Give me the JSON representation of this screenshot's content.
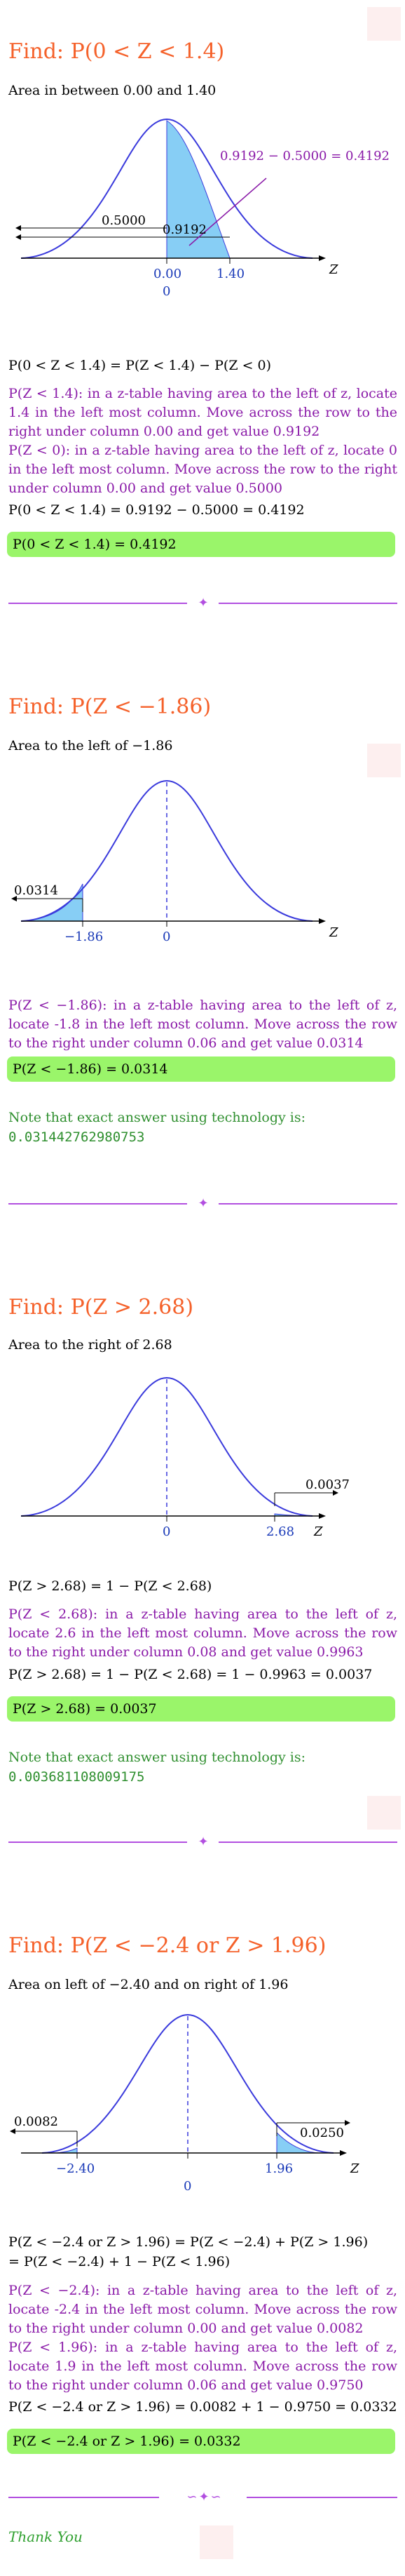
{
  "sections": [
    {
      "title": "Find: P(0 < Z < 1.4)",
      "subtitle": "Area in between 0.00 and 1.40",
      "graph": {
        "labels": [
          "0.9192 − 0.5000 = 0.4192",
          "0.5000",
          "0.9192",
          "0.00",
          "1.40",
          "0",
          "Z"
        ]
      },
      "lines": [
        "P(0 < Z < 1.4) = P(Z < 1.4) − P(Z < 0)"
      ],
      "para1": "P(Z < 1.4): in a z-table having area to the left of z, locate 1.4 in the left most column. Move across the row to the right under column 0.00 and get value 0.9192",
      "para2": "P(Z < 0): in a z-table having area to the left of z, locate 0 in the left most column. Move across the row to the right under column 0.00 and get value 0.5000",
      "line2": "P(0 < Z < 1.4) = 0.9192 − 0.5000 = 0.4192",
      "result": "P(0 < Z < 1.4) = 0.4192"
    },
    {
      "title": "Find: P(Z < −1.86)",
      "subtitle": "Area to the left of −1.86",
      "graph": {
        "labels": [
          "0.0314",
          "−1.86",
          "0",
          "Z"
        ]
      },
      "para1": "P(Z < −1.86): in a z-table having area to the left of z, locate -1.8 in the left most column. Move across the row to the right under column 0.06 and get value 0.0314",
      "result": "P(Z < −1.86) = 0.0314",
      "note": "Note that exact answer using technology is:",
      "tech": "0.031442762980753"
    },
    {
      "title": "Find: P(Z > 2.68)",
      "subtitle": "Area to the right of 2.68",
      "graph": {
        "labels": [
          "0.0037",
          "2.68",
          "0",
          "Z"
        ]
      },
      "line1": "P(Z > 2.68) = 1 − P(Z < 2.68)",
      "para1": "P(Z < 2.68): in a z-table having area to the left of z, locate 2.6 in the left most column. Move across the row to the right under column 0.08 and get value 0.9963",
      "line2": "P(Z > 2.68) = 1 − P(Z < 2.68) = 1 − 0.9963 = 0.0037",
      "result": "P(Z > 2.68) = 0.0037",
      "note": "Note that exact answer using technology is:",
      "tech": "0.003681108009175"
    },
    {
      "title": "Find: P(Z < −2.4 or Z > 1.96)",
      "subtitle": "Area on left of −2.40 and on right of 1.96",
      "graph": {
        "labels": [
          "0.0082",
          "0.0250",
          "−2.40",
          "1.96",
          "0",
          "Z"
        ]
      },
      "line1": "P(Z < −2.4 or Z > 1.96) = P(Z < −2.4) + P(Z > 1.96)",
      "line1b": "= P(Z < −2.4) + 1 − P(Z < 1.96)",
      "para1": "P(Z < −2.4): in a z-table having area to the left of z, locate -2.4 in the left most column. Move across the row to the right under column 0.00 and get value 0.0082",
      "para2": "P(Z < 1.96): in a z-table having area to the left of z, locate 1.9 in the left most column. Move across the row to the right under column 0.06 and get value 0.9750",
      "line2": "P(Z < −2.4 or Z > 1.96) = 0.0082 + 1 − 0.9750 = 0.0332",
      "result": "P(Z < −2.4 or Z > 1.96) = 0.0332"
    }
  ],
  "footer": {
    "thanks": "Thank You"
  },
  "colors": {
    "title": "#f5612a",
    "purple": "#8a1aa8",
    "green_box": "#9af56a",
    "curve": "#3a3adc",
    "shade": "#87cef5"
  }
}
